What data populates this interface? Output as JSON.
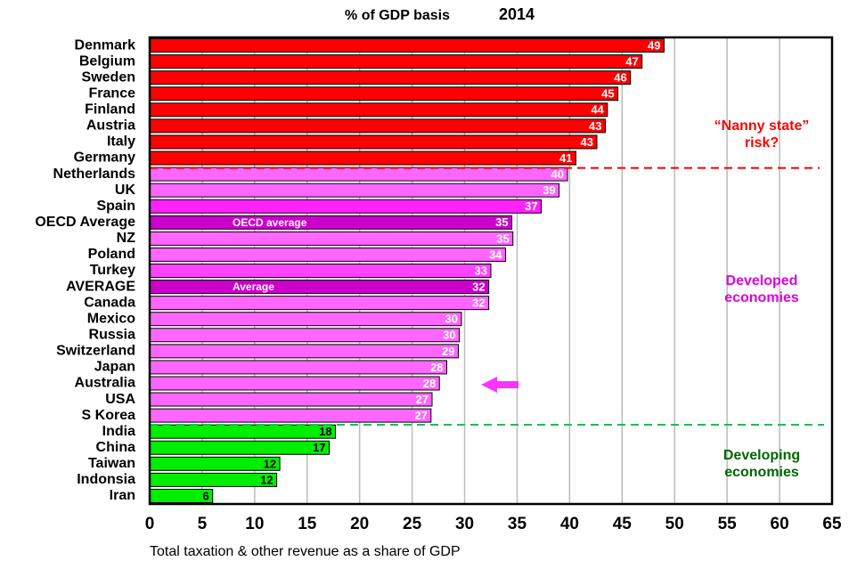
{
  "chart_data": {
    "type": "barh",
    "subtitle": "% of GDP basis",
    "year": "2014",
    "xlabel": "Total taxation & other revenue as a share of GDP",
    "categories": [
      "Denmark",
      "Belgium",
      "Sweden",
      "France",
      "Finland",
      "Austria",
      "Italy",
      "Germany",
      "Netherlands",
      "UK",
      "Spain",
      "OECD Average",
      "NZ",
      "Poland",
      "Turkey",
      "AVERAGE",
      "Canada",
      "Mexico",
      "Russia",
      "Switzerland",
      "Japan",
      "Australia",
      "USA",
      "S Korea",
      "India",
      "China",
      "Taiwan",
      "Indonsia",
      "Iran"
    ],
    "values": [
      49,
      46.9,
      45.8,
      44.6,
      43.6,
      43.4,
      42.6,
      40.6,
      39.8,
      39,
      37.3,
      34.5,
      34.6,
      33.9,
      32.5,
      32.3,
      32.3,
      29.7,
      29.5,
      29.4,
      28.3,
      27.6,
      26.9,
      26.8,
      17.7,
      17.1,
      12.4,
      12.1,
      6
    ],
    "value_labels": [
      "49",
      "47",
      "46",
      "45",
      "44",
      "43",
      "43",
      "41",
      "40",
      "39",
      "37",
      "35",
      "35",
      "34",
      "33",
      "32",
      "32",
      "30",
      "30",
      "29",
      "28",
      "28",
      "27",
      "27",
      "18",
      "17",
      "12",
      "12",
      "6"
    ],
    "colors": [
      "#ff0000",
      "#ff0000",
      "#ff0000",
      "#ff0000",
      "#ff0000",
      "#ff0000",
      "#ff0000",
      "#ff0000",
      "#ff66ff",
      "#ff66ff",
      "#ff22ff",
      "#cc00cc",
      "#ff66ff",
      "#ff66ff",
      "#ff44ff",
      "#cc00cc",
      "#ff66ff",
      "#ff66ff",
      "#ff66ff",
      "#ff66ff",
      "#ff66ff",
      "#ff66ff",
      "#ff66ff",
      "#ff66ff",
      "#00ee00",
      "#00ee00",
      "#00ee00",
      "#00ee00",
      "#00ee00"
    ],
    "value_label_colors": [
      "#fff",
      "#fff",
      "#fff",
      "#fff",
      "#fff",
      "#fff",
      "#fff",
      "#fff",
      "#fff",
      "#fff",
      "#fff",
      "#fff",
      "#fff",
      "#fff",
      "#fff",
      "#fff",
      "#fff",
      "#fff",
      "#fff",
      "#fff",
      "#fff",
      "#fff",
      "#fff",
      "#fff",
      "#000",
      "#000",
      "#000",
      "#000",
      "#000"
    ],
    "inner_labels": [
      {
        "category": "OECD Average",
        "text": "OECD average"
      },
      {
        "category": "AVERAGE",
        "text": "Average"
      }
    ],
    "annotations": [
      {
        "lines": [
          "“Nanny state”",
          "risk?"
        ],
        "color": "#ff0000"
      },
      {
        "lines": [
          "Developed",
          "economies"
        ],
        "color": "#dd00dd"
      },
      {
        "lines": [
          "Developing",
          "economies"
        ],
        "color": "#006600"
      }
    ],
    "xlim": [
      0,
      65
    ],
    "xticks": [
      0,
      5,
      10,
      15,
      20,
      25,
      30,
      35,
      40,
      45,
      50,
      55,
      60,
      65
    ],
    "grid": true
  }
}
